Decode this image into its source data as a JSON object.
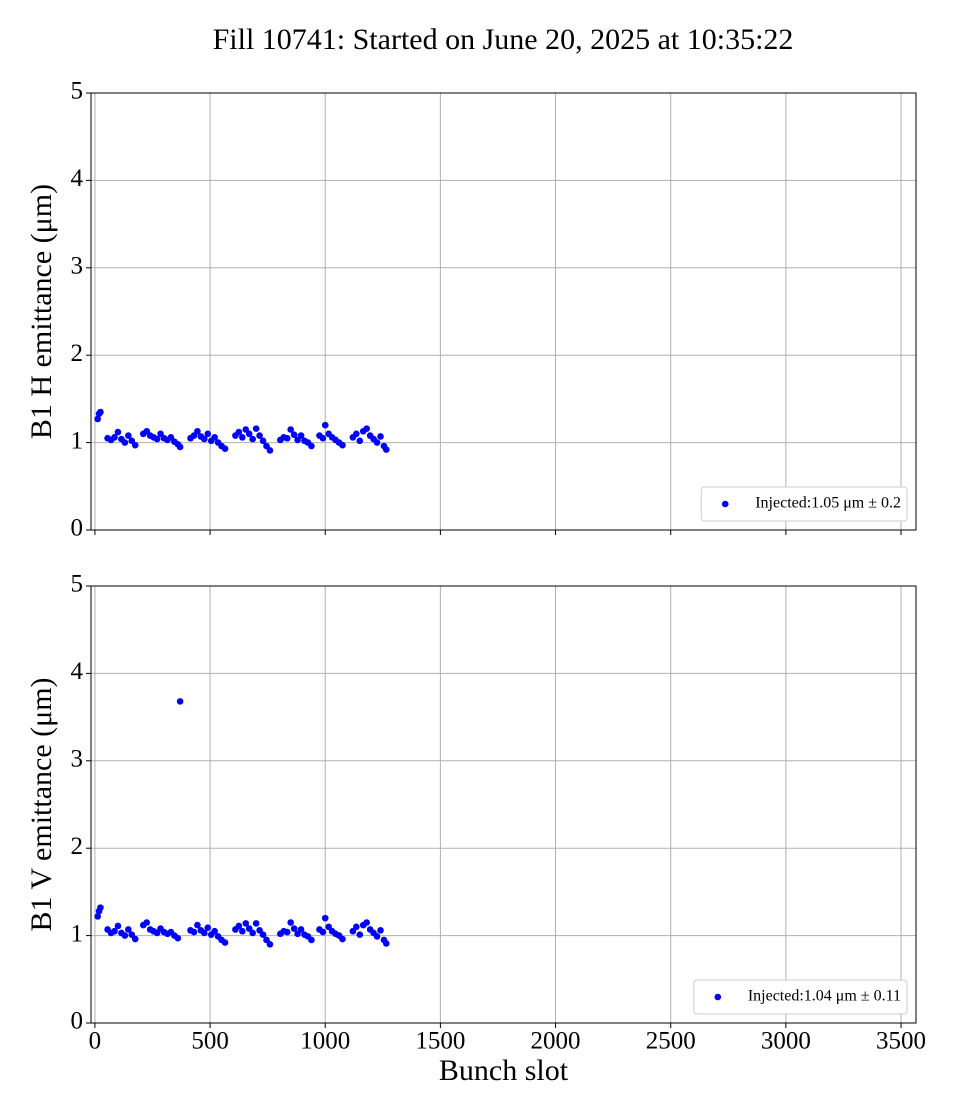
{
  "title": "Fill 10741: Started on June 20, 2025 at 10:35:22",
  "chart_data": [
    {
      "type": "scatter",
      "ylabel": "B1 H emittance (μm)",
      "x": [
        12,
        18,
        24,
        55,
        70,
        85,
        100,
        115,
        130,
        145,
        160,
        175,
        210,
        225,
        240,
        255,
        270,
        285,
        300,
        315,
        330,
        345,
        360,
        370,
        415,
        430,
        445,
        460,
        475,
        490,
        505,
        520,
        535,
        550,
        565,
        610,
        625,
        640,
        655,
        670,
        685,
        700,
        715,
        730,
        745,
        760,
        805,
        820,
        835,
        850,
        865,
        880,
        895,
        910,
        925,
        940,
        975,
        990,
        1000,
        1015,
        1030,
        1045,
        1060,
        1075,
        1120,
        1135,
        1150,
        1165,
        1180,
        1195,
        1210,
        1225,
        1240,
        1255,
        1265
      ],
      "series": [
        {
          "name": "Injected:1.05 μm ± 0.2",
          "color": "#0000ff",
          "values": [
            1.27,
            1.33,
            1.35,
            1.05,
            1.03,
            1.06,
            1.12,
            1.04,
            1.0,
            1.08,
            1.02,
            0.97,
            1.1,
            1.13,
            1.08,
            1.06,
            1.04,
            1.1,
            1.05,
            1.03,
            1.06,
            1.01,
            0.98,
            0.95,
            1.05,
            1.08,
            1.13,
            1.07,
            1.04,
            1.1,
            1.02,
            1.06,
            1.0,
            0.96,
            0.93,
            1.08,
            1.12,
            1.06,
            1.15,
            1.1,
            1.04,
            1.16,
            1.08,
            1.02,
            0.96,
            0.91,
            1.03,
            1.06,
            1.05,
            1.15,
            1.09,
            1.03,
            1.08,
            1.02,
            1.0,
            0.96,
            1.08,
            1.05,
            1.2,
            1.1,
            1.06,
            1.03,
            1.0,
            0.97,
            1.06,
            1.1,
            1.02,
            1.13,
            1.16,
            1.08,
            1.04,
            1.0,
            1.07,
            0.96,
            0.92
          ]
        }
      ],
      "xlim": [
        -17,
        3565
      ],
      "ylim": [
        0,
        5
      ],
      "xticks": [
        0,
        500,
        1000,
        1500,
        2000,
        2500,
        3000,
        3500
      ],
      "yticks": [
        0,
        1,
        2,
        3,
        4,
        5
      ],
      "grid": true,
      "legend": "lower right"
    },
    {
      "type": "scatter",
      "ylabel": "B1 V emittance (μm)",
      "xlabel": "Bunch slot",
      "x": [
        12,
        18,
        24,
        55,
        70,
        85,
        100,
        115,
        130,
        145,
        160,
        175,
        210,
        225,
        240,
        255,
        270,
        285,
        300,
        315,
        330,
        345,
        360,
        370,
        415,
        430,
        445,
        460,
        475,
        490,
        505,
        520,
        535,
        550,
        565,
        610,
        625,
        640,
        655,
        670,
        685,
        700,
        715,
        730,
        745,
        760,
        805,
        820,
        835,
        850,
        865,
        880,
        895,
        910,
        925,
        940,
        975,
        990,
        1000,
        1015,
        1030,
        1045,
        1060,
        1075,
        1120,
        1135,
        1150,
        1165,
        1180,
        1195,
        1210,
        1225,
        1240,
        1255,
        1265
      ],
      "series": [
        {
          "name": "Injected:1.04 μm ± 0.11",
          "color": "#0000ff",
          "values": [
            1.22,
            1.28,
            1.32,
            1.07,
            1.03,
            1.05,
            1.11,
            1.03,
            1.0,
            1.07,
            1.01,
            0.96,
            1.12,
            1.15,
            1.07,
            1.05,
            1.03,
            1.08,
            1.04,
            1.02,
            1.04,
            1.0,
            0.97,
            3.68,
            1.06,
            1.04,
            1.12,
            1.06,
            1.03,
            1.09,
            1.01,
            1.05,
            0.99,
            0.95,
            0.92,
            1.07,
            1.11,
            1.05,
            1.14,
            1.08,
            1.03,
            1.14,
            1.06,
            1.01,
            0.95,
            0.9,
            1.02,
            1.05,
            1.04,
            1.15,
            1.08,
            1.02,
            1.07,
            1.01,
            0.99,
            0.95,
            1.07,
            1.04,
            1.2,
            1.1,
            1.05,
            1.02,
            1.0,
            0.96,
            1.05,
            1.1,
            1.01,
            1.12,
            1.15,
            1.07,
            1.03,
            0.99,
            1.06,
            0.95,
            0.91
          ]
        }
      ],
      "xlim": [
        -17,
        3565
      ],
      "ylim": [
        0,
        5
      ],
      "xticks": [
        0,
        500,
        1000,
        1500,
        2000,
        2500,
        3000,
        3500
      ],
      "yticks": [
        0,
        1,
        2,
        3,
        4,
        5
      ],
      "grid": true,
      "legend": "lower right"
    }
  ]
}
